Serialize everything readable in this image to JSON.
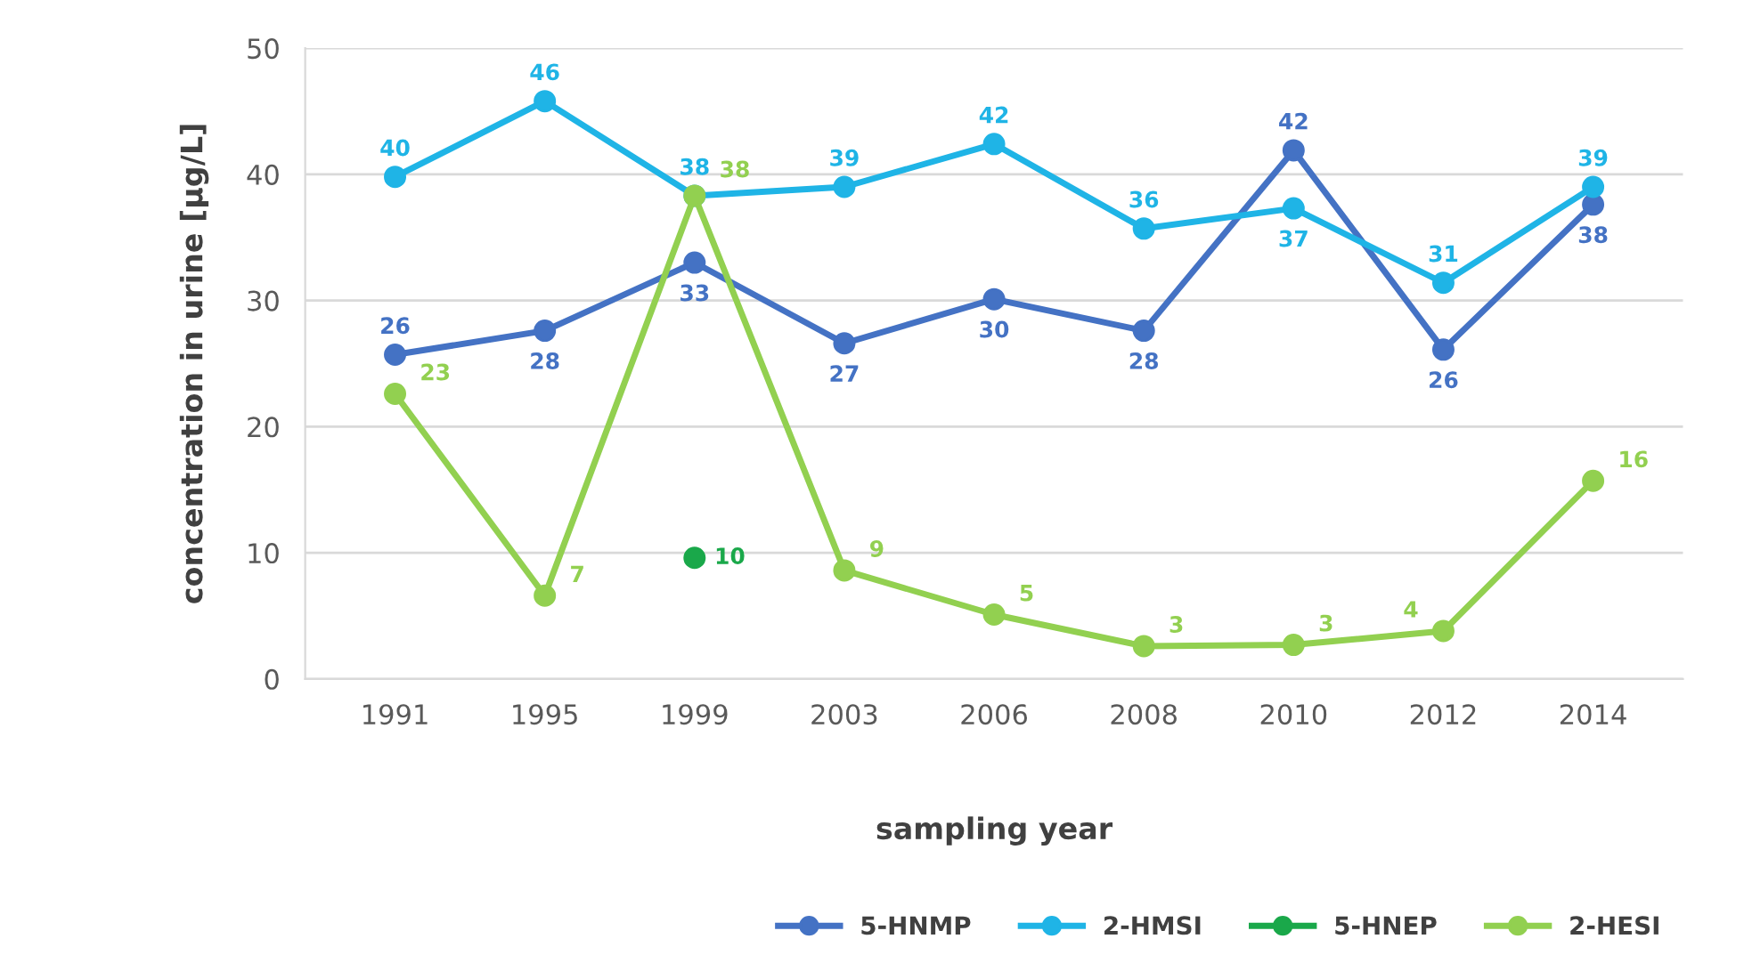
{
  "chart_data": {
    "type": "line",
    "xlabel": "sampling year",
    "ylabel": "concentration in urine [µg/L]",
    "categories": [
      "1991",
      "1995",
      "1999",
      "2003",
      "2006",
      "2008",
      "2010",
      "2012",
      "2014"
    ],
    "series": [
      {
        "name": "5-HNMP",
        "color": "#4472c4",
        "values": [
          25.7,
          27.6,
          33.0,
          26.6,
          30.1,
          27.6,
          41.9,
          26.1,
          37.6
        ],
        "value_labels": [
          "26",
          "28",
          "33",
          "27",
          "30",
          "28",
          "42",
          "26",
          "38"
        ]
      },
      {
        "name": "2-HMSI",
        "color": "#1fb4e6",
        "values": [
          39.8,
          45.8,
          38.3,
          39.0,
          42.4,
          35.7,
          37.3,
          31.4,
          39.0
        ],
        "value_labels": [
          "40",
          "46",
          "38",
          "39",
          "42",
          "36",
          "37",
          "31",
          "39"
        ]
      },
      {
        "name": "5-HNEP",
        "color": "#1aa84a",
        "values": [
          null,
          null,
          9.6,
          null,
          null,
          null,
          null,
          null,
          null
        ],
        "value_labels": [
          null,
          null,
          "10",
          null,
          null,
          null,
          null,
          null,
          null
        ]
      },
      {
        "name": "2-HESI",
        "color": "#92d050",
        "values": [
          22.6,
          6.6,
          38.3,
          8.6,
          5.1,
          2.6,
          2.7,
          3.8,
          15.7
        ],
        "value_labels": [
          "23",
          "7",
          "38",
          "9",
          "5",
          "3",
          "3",
          "4",
          "16"
        ]
      }
    ],
    "ylim": [
      0,
      50
    ],
    "yticks": [
      0,
      10,
      20,
      30,
      40,
      50
    ],
    "grid": "y",
    "legend": "bottom right",
    "marker": "circle",
    "line_style": "solid"
  }
}
